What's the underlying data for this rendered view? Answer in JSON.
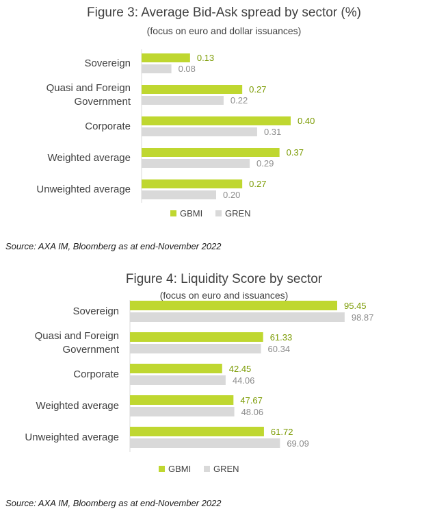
{
  "chart_data": [
    {
      "type": "bar",
      "orientation": "horizontal",
      "title": "Figure 3: Average Bid-Ask spread by sector (%)",
      "subtitle": "(focus on euro and dollar issuances)",
      "categories": [
        [
          "Sovereign"
        ],
        [
          "Quasi and Foreign",
          "Government"
        ],
        [
          "Corporate"
        ],
        [
          "Weighted average"
        ],
        [
          "Unweighted average"
        ]
      ],
      "series": [
        {
          "name": "GBMI",
          "color": "#bfd730",
          "label_color": "#7a9a00",
          "values": [
            0.13,
            0.27,
            0.4,
            0.37,
            0.27
          ],
          "labels": [
            "0.13",
            "0.27",
            "0.40",
            "0.37",
            "0.27"
          ]
        },
        {
          "name": "GREN",
          "color": "#d9d9d9",
          "label_color": "#8c8c8c",
          "values": [
            0.08,
            0.22,
            0.31,
            0.29,
            0.2
          ],
          "labels": [
            "0.08",
            "0.22",
            "0.31",
            "0.29",
            "0.20"
          ]
        }
      ],
      "xlim": [
        0,
        0.45
      ],
      "grid": false,
      "legend": "bottom",
      "source": "Source: AXA IM, Bloomberg as at end-November 2022"
    },
    {
      "type": "bar",
      "orientation": "horizontal",
      "title": "Figure 4: Liquidity Score by sector",
      "subtitle": "(focus on euro and issuances)",
      "categories": [
        [
          "Sovereign"
        ],
        [
          "Quasi and Foreign",
          "Government"
        ],
        [
          "Corporate"
        ],
        [
          "Weighted average"
        ],
        [
          "Unweighted average"
        ]
      ],
      "series": [
        {
          "name": "GBMI",
          "color": "#bfd730",
          "label_color": "#7a9a00",
          "values": [
            95.45,
            61.33,
            42.45,
            47.67,
            61.72
          ],
          "labels": [
            "95.45",
            "61.33",
            "42.45",
            "47.67",
            "61.72"
          ]
        },
        {
          "name": "GREN",
          "color": "#d9d9d9",
          "label_color": "#8c8c8c",
          "values": [
            98.87,
            60.34,
            44.06,
            48.06,
            69.09
          ],
          "labels": [
            "98.87",
            "60.34",
            "44.06",
            "48.06",
            "69.09"
          ]
        }
      ],
      "xlim": [
        0,
        110
      ],
      "grid": false,
      "legend": "bottom",
      "source": "Source: AXA IM, Bloomberg as at end-November 2022"
    }
  ]
}
